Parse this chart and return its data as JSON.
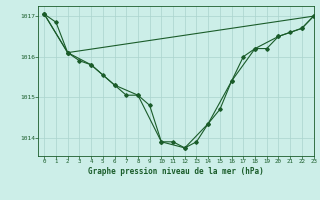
{
  "background_color": "#cceee8",
  "grid_color": "#aad4ce",
  "line_color": "#1a5c2a",
  "title": "Graphe pression niveau de la mer (hPa)",
  "xlim": [
    -0.5,
    23
  ],
  "ylim": [
    1013.55,
    1017.25
  ],
  "yticks": [
    1014,
    1015,
    1016,
    1017
  ],
  "ytick_labels": [
    "1014",
    "1015",
    "1016",
    "1017"
  ],
  "xticks": [
    0,
    1,
    2,
    3,
    4,
    5,
    6,
    7,
    8,
    9,
    10,
    11,
    12,
    13,
    14,
    15,
    16,
    17,
    18,
    19,
    20,
    21,
    22,
    23
  ],
  "series_main": {
    "x": [
      0,
      1,
      2,
      3,
      4,
      5,
      6,
      7,
      8,
      9,
      10,
      11,
      12,
      13,
      14,
      15,
      16,
      17,
      18,
      19,
      20,
      21,
      22,
      23
    ],
    "y": [
      1017.05,
      1016.85,
      1016.1,
      1015.9,
      1015.8,
      1015.55,
      1015.3,
      1015.05,
      1015.05,
      1014.8,
      1013.9,
      1013.9,
      1013.75,
      1013.9,
      1014.35,
      1014.7,
      1015.4,
      1016.0,
      1016.2,
      1016.2,
      1016.5,
      1016.6,
      1016.7,
      1017.0
    ]
  },
  "series_sparse": {
    "x": [
      0,
      2,
      4,
      6,
      8,
      10,
      12,
      14,
      16,
      18,
      20,
      22,
      23
    ],
    "y": [
      1017.05,
      1016.1,
      1015.8,
      1015.3,
      1015.05,
      1013.9,
      1013.75,
      1014.35,
      1015.4,
      1016.2,
      1016.5,
      1016.7,
      1017.0
    ]
  },
  "series_flat": {
    "x": [
      0,
      2,
      23
    ],
    "y": [
      1017.05,
      1016.1,
      1017.0
    ]
  }
}
